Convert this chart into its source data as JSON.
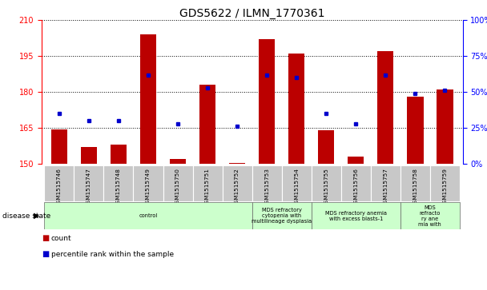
{
  "title": "GDS5622 / ILMN_1770361",
  "samples": [
    "GSM1515746",
    "GSM1515747",
    "GSM1515748",
    "GSM1515749",
    "GSM1515750",
    "GSM1515751",
    "GSM1515752",
    "GSM1515753",
    "GSM1515754",
    "GSM1515755",
    "GSM1515756",
    "GSM1515757",
    "GSM1515758",
    "GSM1515759"
  ],
  "bar_values": [
    164.5,
    157.0,
    158.0,
    204.0,
    152.0,
    183.0,
    150.5,
    202.0,
    196.0,
    164.0,
    153.0,
    197.0,
    178.0,
    181.0
  ],
  "percentile_values_pct": [
    35,
    30,
    30,
    62,
    28,
    53,
    26,
    62,
    60,
    35,
    28,
    62,
    49,
    51
  ],
  "ylim_left": [
    150,
    210
  ],
  "ylim_right": [
    0,
    100
  ],
  "yticks_left": [
    150,
    165,
    180,
    195,
    210
  ],
  "yticks_right": [
    0,
    25,
    50,
    75,
    100
  ],
  "bar_color": "#BB0000",
  "dot_color": "#0000CC",
  "bg_color": "#FFFFFF",
  "group_boundaries": [
    {
      "start": 0,
      "end": 6,
      "label": "control"
    },
    {
      "start": 7,
      "end": 8,
      "label": "MDS refractory\ncytopenia with\nmultilineage dysplasia"
    },
    {
      "start": 9,
      "end": 11,
      "label": "MDS refractory anemia\nwith excess blasts-1"
    },
    {
      "start": 12,
      "end": 13,
      "label": "MDS\nrefracto\nry ane\nmia with"
    }
  ],
  "legend_count": "count",
  "legend_percentile": "percentile rank within the sample",
  "title_fontsize": 10,
  "tick_fontsize": 7,
  "label_fontsize": 5.5
}
